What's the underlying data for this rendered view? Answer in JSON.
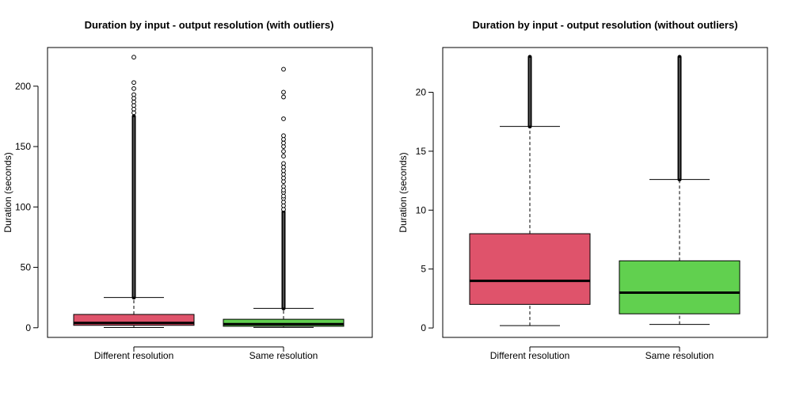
{
  "chart_data": [
    {
      "type": "boxplot",
      "title": "Duration by input - output resolution (with outliers)",
      "xlabel": "",
      "ylabel": "Duration (seconds)",
      "ylim": [
        -8,
        232
      ],
      "yticks": [
        0,
        50,
        100,
        150,
        200
      ],
      "categories": [
        "Different resolution",
        "Same resolution"
      ],
      "colors": [
        "#DF536B",
        "#61D04F"
      ],
      "boxes": [
        {
          "min": 0.2,
          "q1": 2,
          "median": 4,
          "q3": 11,
          "max": 25
        },
        {
          "min": 0.3,
          "q1": 1.2,
          "median": 3,
          "q3": 7,
          "max": 16
        }
      ],
      "outliers": [
        {
          "dense_range": [
            25,
            175
          ],
          "points": [
            178,
            181,
            184,
            187,
            190,
            193,
            198,
            203,
            224
          ]
        },
        {
          "dense_range": [
            16,
            96
          ],
          "points": [
            98,
            101,
            104,
            107,
            109,
            112,
            114,
            117,
            121,
            124,
            127,
            130,
            133,
            136,
            142,
            146,
            150,
            153,
            156,
            159,
            173,
            191,
            195,
            214
          ]
        }
      ]
    },
    {
      "type": "boxplot",
      "title": "Duration by input - output resolution (without outliers)",
      "xlabel": "",
      "ylabel": "Duration (seconds)",
      "ylim": [
        -0.8,
        23.8
      ],
      "yticks": [
        0,
        5,
        10,
        15,
        20
      ],
      "categories": [
        "Different resolution",
        "Same resolution"
      ],
      "colors": [
        "#DF536B",
        "#61D04F"
      ],
      "boxes": [
        {
          "min": 0.2,
          "q1": 2,
          "median": 4,
          "q3": 8,
          "max": 17.1
        },
        {
          "min": 0.3,
          "q1": 1.2,
          "median": 3,
          "q3": 5.7,
          "max": 12.6
        }
      ],
      "outliers": [
        {
          "dense_range": [
            17.1,
            23
          ],
          "points": []
        },
        {
          "dense_range": [
            12.6,
            23
          ],
          "points": []
        }
      ]
    }
  ]
}
